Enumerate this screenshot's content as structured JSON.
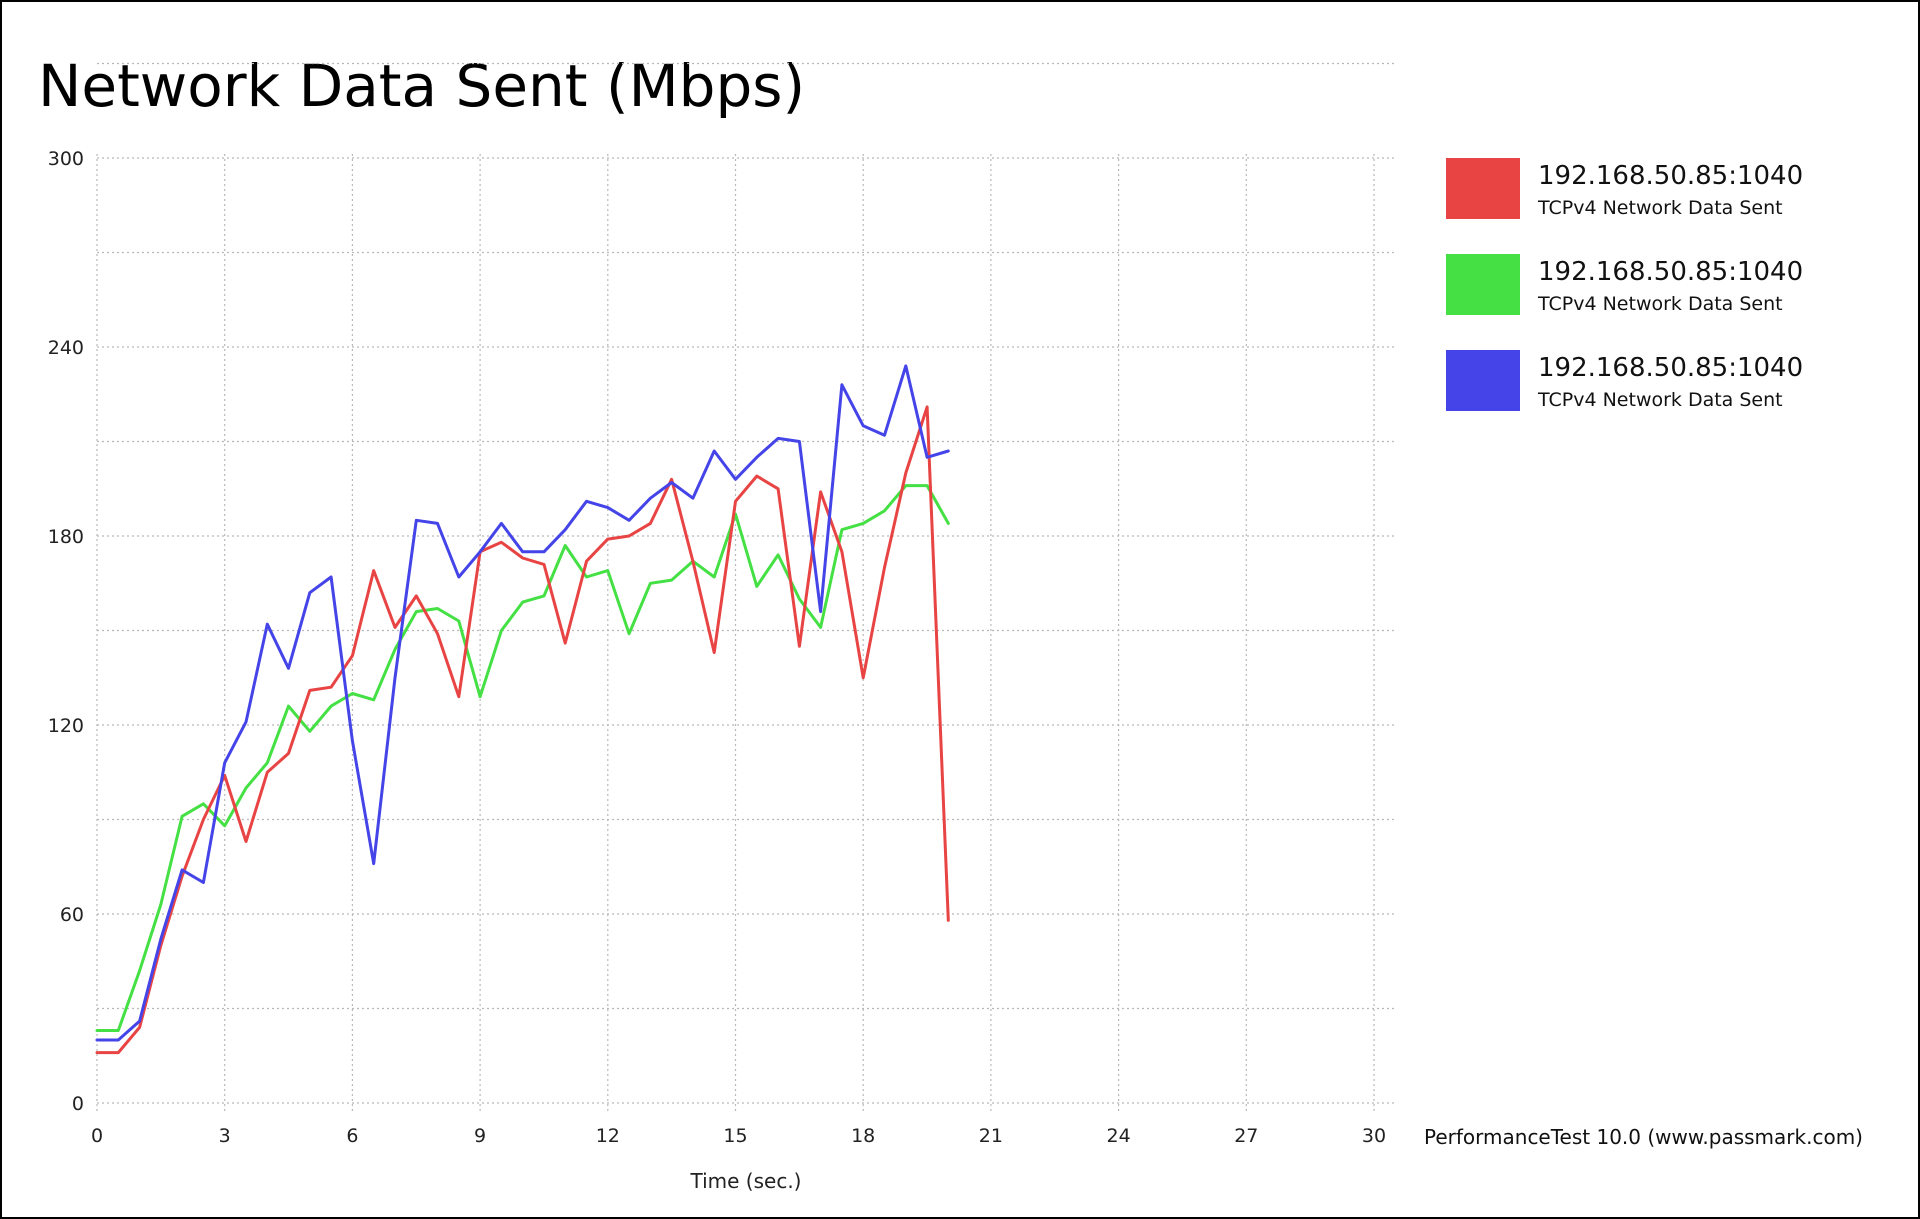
{
  "chart_data": {
    "type": "line",
    "title": "Network Data Sent (Mbps)",
    "xlabel": "Time (sec.)",
    "ylabel": "",
    "xlim": [
      0,
      30
    ],
    "ylim": [
      0,
      300
    ],
    "x_ticks": [
      "0",
      "3",
      "6",
      "9",
      "12",
      "15",
      "18",
      "21",
      "24",
      "27",
      "30"
    ],
    "y_ticks": [
      "0",
      "60",
      "120",
      "180",
      "240",
      "300"
    ],
    "grid": true,
    "legend_position": "right",
    "credit": "PerformanceTest 10.0 (www.passmark.com)",
    "series": [
      {
        "name": "192.168.50.85:1040",
        "subtitle": "TCPv4 Network Data Sent",
        "color": "#e84444",
        "x": [
          0,
          0.5,
          1,
          1.5,
          2,
          2.5,
          3,
          3.5,
          4,
          4.5,
          5,
          5.5,
          6,
          6.5,
          7,
          7.5,
          8,
          8.5,
          9,
          9.5,
          10,
          10.5,
          11,
          11.5,
          12,
          12.5,
          13,
          13.5,
          14,
          14.5,
          15,
          15.5,
          16,
          16.5,
          17,
          17.5,
          18,
          18.5,
          19,
          19.5,
          20
        ],
        "values": [
          16,
          16,
          24,
          50,
          72,
          90,
          104,
          83,
          105,
          111,
          131,
          132,
          142,
          169,
          151,
          161,
          149,
          129,
          175,
          178,
          173,
          171,
          146,
          172,
          179,
          180,
          184,
          198,
          172,
          143,
          191,
          199,
          195,
          145,
          194,
          175,
          135,
          170,
          200,
          221,
          58
        ]
      },
      {
        "name": "192.168.50.85:1040",
        "subtitle": "TCPv4 Network Data Sent",
        "color": "#44e044",
        "x": [
          0,
          0.5,
          1,
          1.5,
          2,
          2.5,
          3,
          3.5,
          4,
          4.5,
          5,
          5.5,
          6,
          6.5,
          7,
          7.5,
          8,
          8.5,
          9,
          9.5,
          10,
          10.5,
          11,
          11.5,
          12,
          12.5,
          13,
          13.5,
          14,
          14.5,
          15,
          15.5,
          16,
          16.5,
          17,
          17.5,
          18,
          18.5,
          19,
          19.5,
          20
        ],
        "values": [
          23,
          23,
          42,
          63,
          91,
          95,
          88,
          100,
          108,
          126,
          118,
          126,
          130,
          128,
          144,
          156,
          157,
          153,
          129,
          150,
          159,
          161,
          177,
          167,
          169,
          149,
          165,
          166,
          172,
          167,
          187,
          164,
          174,
          160,
          151,
          182,
          184,
          188,
          196,
          196,
          184
        ]
      },
      {
        "name": "192.168.50.85:1040",
        "subtitle": "TCPv4 Network Data Sent",
        "color": "#4444e8",
        "x": [
          0,
          0.5,
          1,
          1.5,
          2,
          2.5,
          3,
          3.5,
          4,
          4.5,
          5,
          5.5,
          6,
          6.5,
          7,
          7.5,
          8,
          8.5,
          9,
          9.5,
          10,
          10.5,
          11,
          11.5,
          12,
          12.5,
          13,
          13.5,
          14,
          14.5,
          15,
          15.5,
          16,
          16.5,
          17,
          17.5,
          18,
          18.5,
          19,
          19.5,
          20
        ],
        "values": [
          20,
          20,
          26,
          52,
          74,
          70,
          108,
          121,
          152,
          138,
          162,
          167,
          115,
          76,
          135,
          185,
          184,
          167,
          175,
          184,
          175,
          175,
          182,
          191,
          189,
          185,
          192,
          197,
          192,
          207,
          198,
          205,
          211,
          210,
          156,
          228,
          215,
          212,
          234,
          205,
          207
        ]
      }
    ]
  }
}
